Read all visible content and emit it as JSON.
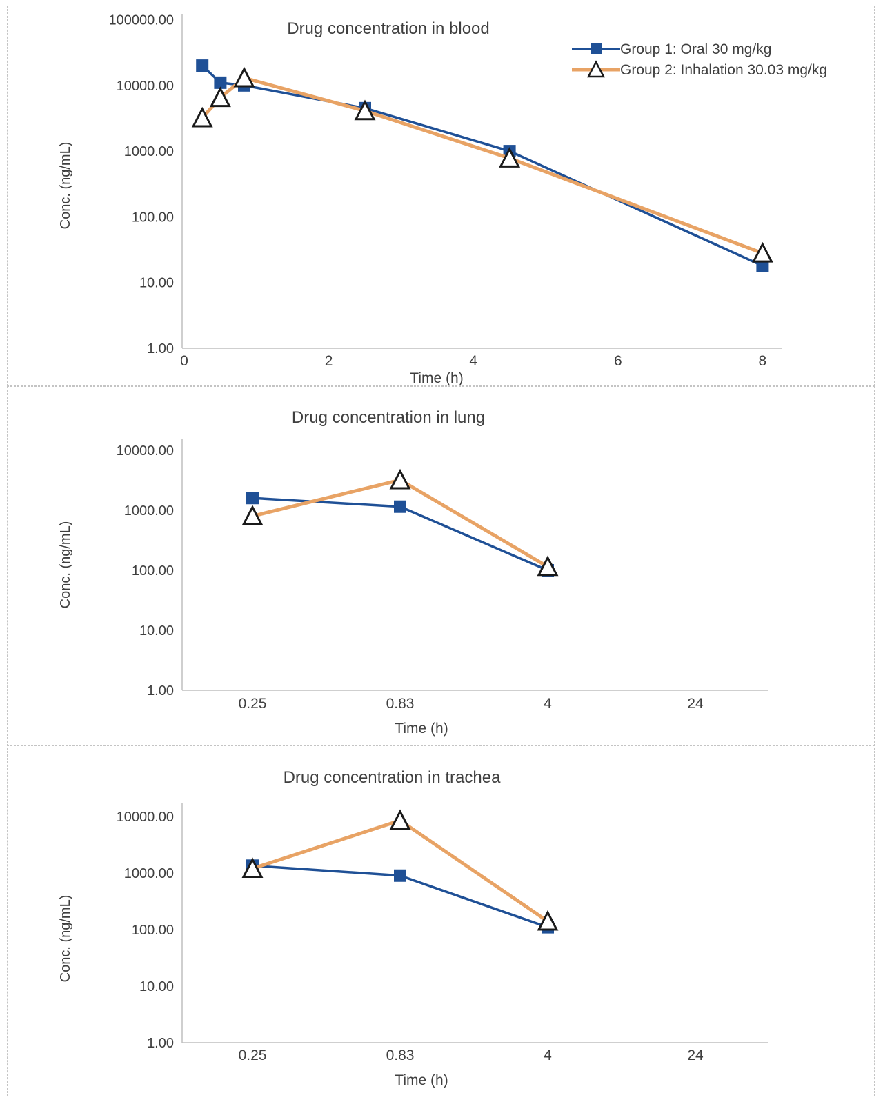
{
  "colors": {
    "group1": "#1f5096",
    "group2": "#e8a365",
    "text": "#3f3f3f",
    "axis": "#bfbfbf",
    "triangle_fill": "#ffffff",
    "triangle_stroke": "#1a1a1a"
  },
  "legend": {
    "entries": [
      {
        "label": "Group 1: Oral 30 mg/kg",
        "series": "group1",
        "marker": "square"
      },
      {
        "label": "Group 2: Inhalation 30.03 mg/kg",
        "series": "group2",
        "marker": "triangle"
      }
    ]
  },
  "chart_data": [
    {
      "id": "blood",
      "type": "line",
      "title": "Drug concentration in blood",
      "xlabel": "Time (h)",
      "ylabel": "Conc. (ng/mL)",
      "y_scale": "log",
      "ylim": [
        1,
        100000
      ],
      "y_ticks": [
        "100000.00",
        "10000.00",
        "1000.00",
        "100.00",
        "10.00",
        "1.00"
      ],
      "x_mode": "numeric",
      "xlim": [
        0,
        8.3
      ],
      "x_ticks": [
        0,
        2,
        4,
        6,
        8
      ],
      "x": [
        0.25,
        0.5,
        0.83,
        2.5,
        4.5,
        8
      ],
      "series": [
        {
          "name": "Group 1: Oral 30 mg/kg",
          "color_key": "group1",
          "marker": "square",
          "values": [
            20000,
            11000,
            10000,
            4500,
            1000,
            18
          ]
        },
        {
          "name": "Group 2: Inhalation 30.03 mg/kg",
          "color_key": "group2",
          "marker": "triangle",
          "values": [
            3200,
            6500,
            13000,
            4100,
            780,
            28
          ]
        }
      ],
      "legend": true,
      "grid": false,
      "legend_position": "top-right"
    },
    {
      "id": "lung",
      "type": "line",
      "title": "Drug concentration in lung",
      "xlabel": "Time (h)",
      "ylabel": "Conc. (ng/mL)",
      "y_scale": "log",
      "ylim": [
        1,
        10000
      ],
      "y_ticks": [
        "10000.00",
        "1000.00",
        "100.00",
        "10.00",
        "1.00"
      ],
      "x_mode": "categorical",
      "categories": [
        "0.25",
        "0.83",
        "4",
        "24"
      ],
      "series": [
        {
          "name": "Group 1: Oral 30 mg/kg",
          "color_key": "group1",
          "marker": "square",
          "values": [
            1600,
            1150,
            100,
            null
          ]
        },
        {
          "name": "Group 2: Inhalation 30.03 mg/kg",
          "color_key": "group2",
          "marker": "triangle",
          "values": [
            800,
            3200,
            115,
            null
          ]
        }
      ],
      "legend": false,
      "grid": false
    },
    {
      "id": "trachea",
      "type": "line",
      "title": "Drug concentration in trachea",
      "xlabel": "Time (h)",
      "ylabel": "Conc. (ng/mL)",
      "y_scale": "log",
      "ylim": [
        1,
        10000
      ],
      "y_ticks": [
        "10000.00",
        "1000.00",
        "100.00",
        "10.00",
        "1.00"
      ],
      "x_mode": "categorical",
      "categories": [
        "0.25",
        "0.83",
        "4",
        "24"
      ],
      "series": [
        {
          "name": "Group 1: Oral 30 mg/kg",
          "color_key": "group1",
          "marker": "square",
          "values": [
            1350,
            900,
            110,
            null
          ]
        },
        {
          "name": "Group 2: Inhalation 30.03 mg/kg",
          "color_key": "group2",
          "marker": "triangle",
          "values": [
            1200,
            8500,
            140,
            null
          ]
        }
      ],
      "legend": false,
      "grid": false
    }
  ]
}
